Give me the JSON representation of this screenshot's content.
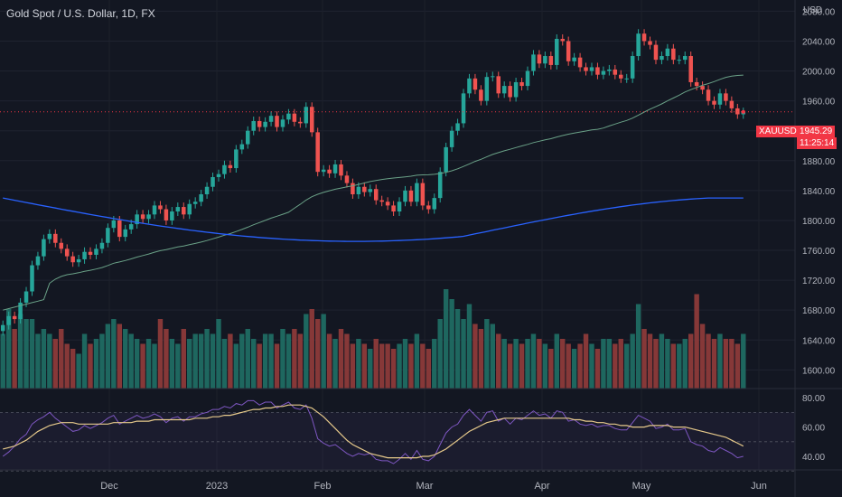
{
  "header": {
    "title": "Gold Spot / U.S. Dollar, 1D, FX",
    "currency": "USD"
  },
  "price_tag": {
    "symbol": "XAUUSD",
    "price": "1945.29",
    "countdown": "11:25:14"
  },
  "colors": {
    "background": "#131722",
    "up": "#26a69a",
    "down": "#ef5350",
    "ma_fast": "#6aa187",
    "ma_slow": "#2962ff",
    "rsi": "#7e57c2",
    "rsi_ma": "#e6c98b",
    "tag": "#f23645"
  },
  "chart_data": [
    {
      "type": "candlestick",
      "title": "Gold Spot / U.S. Dollar, 1D, FX",
      "y_ticks": [
        1600,
        1640,
        1680,
        1720,
        1760,
        1800,
        1840,
        1880,
        1920,
        1960,
        2000,
        2040,
        2080
      ],
      "ylim": [
        1575,
        2095
      ],
      "x_ticks": [
        "Dec",
        "2023",
        "Feb",
        "Mar",
        "Apr",
        "May",
        "Jun"
      ],
      "last_price": 1945.29,
      "candles_close": [
        1660,
        1672,
        1668,
        1690,
        1705,
        1740,
        1752,
        1775,
        1782,
        1770,
        1762,
        1752,
        1744,
        1748,
        1758,
        1754,
        1762,
        1770,
        1790,
        1800,
        1778,
        1788,
        1795,
        1808,
        1802,
        1808,
        1820,
        1815,
        1800,
        1812,
        1818,
        1808,
        1822,
        1825,
        1835,
        1845,
        1858,
        1862,
        1874,
        1870,
        1895,
        1902,
        1920,
        1933,
        1925,
        1932,
        1940,
        1925,
        1935,
        1943,
        1932,
        1930,
        1952,
        1918,
        1865,
        1868,
        1863,
        1875,
        1860,
        1850,
        1835,
        1845,
        1838,
        1842,
        1827,
        1825,
        1820,
        1812,
        1825,
        1840,
        1825,
        1850,
        1820,
        1815,
        1830,
        1865,
        1898,
        1920,
        1930,
        1970,
        1990,
        1975,
        1960,
        1992,
        1993,
        1970,
        1980,
        1965,
        1985,
        1980,
        2000,
        2022,
        2010,
        2020,
        2008,
        2043,
        2040,
        2013,
        2018,
        2005,
        2000,
        2005,
        1995,
        2000,
        2002,
        1995,
        1990,
        1990,
        2020,
        2050,
        2040,
        2035,
        2015,
        2020,
        2030,
        2015,
        2015,
        2020,
        1985,
        1980,
        1975,
        1960,
        1955,
        1970,
        1960,
        1950,
        1942,
        1945
      ],
      "volume_relative": [
        0.55,
        0.8,
        0.6,
        0.75,
        0.7,
        0.7,
        0.55,
        0.6,
        0.55,
        0.5,
        0.6,
        0.45,
        0.4,
        0.35,
        0.55,
        0.45,
        0.5,
        0.55,
        0.65,
        0.7,
        0.65,
        0.6,
        0.55,
        0.5,
        0.45,
        0.5,
        0.45,
        0.7,
        0.6,
        0.5,
        0.45,
        0.6,
        0.5,
        0.55,
        0.55,
        0.6,
        0.55,
        0.7,
        0.5,
        0.55,
        0.45,
        0.55,
        0.6,
        0.5,
        0.45,
        0.55,
        0.55,
        0.45,
        0.6,
        0.55,
        0.6,
        0.55,
        0.75,
        0.8,
        0.7,
        0.75,
        0.55,
        0.5,
        0.6,
        0.55,
        0.45,
        0.5,
        0.45,
        0.4,
        0.5,
        0.45,
        0.45,
        0.4,
        0.45,
        0.5,
        0.45,
        0.55,
        0.45,
        0.4,
        0.5,
        0.7,
        1.0,
        0.9,
        0.8,
        0.7,
        0.85,
        0.65,
        0.6,
        0.7,
        0.65,
        0.55,
        0.5,
        0.45,
        0.5,
        0.45,
        0.5,
        0.55,
        0.5,
        0.45,
        0.4,
        0.55,
        0.5,
        0.45,
        0.4,
        0.45,
        0.55,
        0.45,
        0.4,
        0.5,
        0.5,
        0.45,
        0.5,
        0.45,
        0.55,
        0.85,
        0.6,
        0.55,
        0.5,
        0.55,
        0.5,
        0.45,
        0.45,
        0.5,
        0.55,
        0.95,
        0.65,
        0.55,
        0.5,
        0.55,
        0.5,
        0.5,
        0.45,
        0.55
      ]
    },
    {
      "type": "line",
      "y_ticks": [
        40,
        60,
        80
      ],
      "ylim": [
        32,
        85
      ],
      "series": [
        {
          "values": [
            40,
            43,
            47,
            52,
            55,
            62,
            65,
            67,
            70,
            66,
            63,
            60,
            57,
            58,
            61,
            59,
            61,
            63,
            66,
            68,
            62,
            64,
            66,
            68,
            66,
            67,
            69,
            67,
            63,
            66,
            67,
            64,
            67,
            67,
            69,
            70,
            72,
            72,
            74,
            73,
            76,
            75,
            78,
            78,
            75,
            77,
            77,
            73,
            75,
            77,
            73,
            72,
            75,
            66,
            52,
            49,
            47,
            48,
            45,
            42,
            40,
            42,
            41,
            42,
            38,
            37,
            37,
            35,
            38,
            42,
            38,
            44,
            38,
            37,
            40,
            48,
            56,
            60,
            62,
            68,
            72,
            68,
            64,
            70,
            71,
            64,
            66,
            62,
            66,
            65,
            68,
            71,
            68,
            69,
            66,
            71,
            70,
            64,
            65,
            62,
            61,
            62,
            60,
            61,
            61,
            59,
            58,
            58,
            63,
            68,
            66,
            64,
            59,
            60,
            62,
            58,
            58,
            59,
            50,
            48,
            47,
            44,
            43,
            46,
            44,
            42,
            39,
            40
          ]
        },
        {
          "values": [
            45,
            46,
            47,
            49,
            51,
            54,
            57,
            59,
            61,
            62,
            63,
            63,
            63,
            62,
            62,
            62,
            62,
            62,
            62,
            63,
            63,
            63,
            63,
            64,
            64,
            64,
            65,
            65,
            65,
            65,
            65,
            65,
            65,
            66,
            66,
            66,
            67,
            67,
            68,
            68,
            69,
            70,
            71,
            72,
            72,
            73,
            73,
            74,
            74,
            75,
            75,
            75,
            74,
            73,
            70,
            67,
            63,
            59,
            55,
            51,
            48,
            46,
            44,
            42,
            41,
            40,
            39,
            39,
            39,
            39,
            39,
            39,
            40,
            40,
            41,
            43,
            45,
            48,
            51,
            54,
            57,
            59,
            61,
            63,
            64,
            65,
            66,
            66,
            66,
            66,
            66,
            66,
            66,
            66,
            66,
            66,
            66,
            66,
            65,
            65,
            64,
            64,
            63,
            63,
            62,
            62,
            61,
            61,
            60,
            60,
            60,
            61,
            61,
            61,
            61,
            60,
            60,
            60,
            59,
            58,
            57,
            56,
            55,
            54,
            53,
            51,
            49,
            47
          ]
        }
      ]
    }
  ]
}
